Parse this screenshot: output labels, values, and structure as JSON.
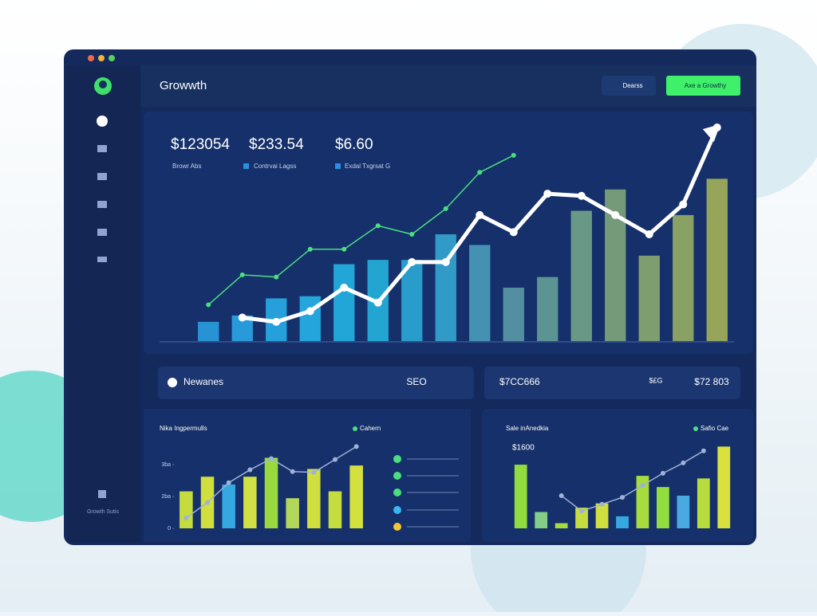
{
  "header": {
    "title": "Growwth",
    "buttons": [
      "Dearss",
      "Axe a Growthy"
    ]
  },
  "sidebar": {
    "footer": "Growth Sutis"
  },
  "stats": [
    {
      "value": "$123054",
      "label": "Browr Abs"
    },
    {
      "value": "$233.54",
      "label": "Contrvai Lagss"
    },
    {
      "value": "$6.60",
      "label": "Exdal Txgrsat G"
    }
  ],
  "row": {
    "left_label": "Newanes",
    "left_tag": "SEO",
    "right_value": "$7CC666",
    "right_tag": "$£G",
    "right_value2": "$72 803"
  },
  "chart_data": [
    {
      "type": "bar",
      "ylim": [
        0,
        100
      ],
      "series": [
        {
          "type": "bar",
          "values": [
            9,
            12,
            20,
            21,
            36,
            38,
            38,
            50,
            45,
            25,
            30,
            61,
            71,
            40,
            59,
            76
          ],
          "colors": [
            "#2a9fe0",
            "#2aa6e6",
            "#27ade8",
            "#26b2e8",
            "#24b4e4",
            "#25b2de",
            "#2aa8d6",
            "#35a6d2",
            "#4a9cbc",
            "#5a9aa6",
            "#64a098",
            "#72a58a",
            "#7ea67c",
            "#8aab70",
            "#96ae64",
            "#a4b258"
          ]
        },
        {
          "type": "line",
          "color": "#ffffff",
          "values": [
            null,
            11,
            9,
            14,
            25,
            18,
            37,
            37,
            59,
            51,
            69,
            68,
            59,
            50,
            64,
            100
          ]
        },
        {
          "type": "line",
          "color": "#4ade80",
          "values": [
            17,
            31,
            30,
            43,
            43,
            54,
            50,
            62,
            79,
            87,
            null,
            null,
            null,
            null,
            null,
            null
          ]
        }
      ]
    },
    {
      "type": "bar",
      "title": "Nika Ingpermulls",
      "legend": "Cahern",
      "ylim": [
        0,
        100
      ],
      "yticks": [
        0,
        {
          "value": 37,
          "label": "2ba"
        },
        {
          "value": 74,
          "label": "3ba"
        }
      ],
      "series": [
        {
          "type": "bar",
          "values": [
            43,
            60,
            51,
            60,
            82,
            35,
            69,
            43,
            73
          ],
          "colors": [
            "#d8ef3a",
            "#e4f23a",
            "#38b6f0",
            "#e6f43e",
            "#a8ec3a",
            "#c4ea5a",
            "#e4f23a",
            "#d8ef3a",
            "#e8f43a"
          ]
        },
        {
          "type": "line",
          "color": "#9fb3d9",
          "values": [
            12,
            30,
            53,
            68,
            81,
            66,
            65,
            80,
            95
          ]
        }
      ]
    },
    {
      "type": "bar",
      "title": "Sale inAnedkia",
      "legend": "Safio Cae",
      "annotation": "$1600",
      "ylim": [
        0,
        100
      ],
      "series": [
        {
          "type": "bar",
          "values": [
            74,
            19,
            6,
            24,
            29,
            14,
            61,
            48,
            38,
            58,
            95
          ],
          "colors": [
            "#9eef3a",
            "#8fe08a",
            "#b6ef3a",
            "#d8ef3a",
            "#e4f23a",
            "#38b6f0",
            "#b6ef3a",
            "#9eef3a",
            "#4fb8f0",
            "#c8ef3a",
            "#f0f43a"
          ]
        },
        {
          "type": "line",
          "color": "#9fb3d9",
          "values": [
            null,
            null,
            38,
            20,
            28,
            36,
            50,
            64,
            76,
            90,
            null
          ]
        }
      ]
    }
  ]
}
